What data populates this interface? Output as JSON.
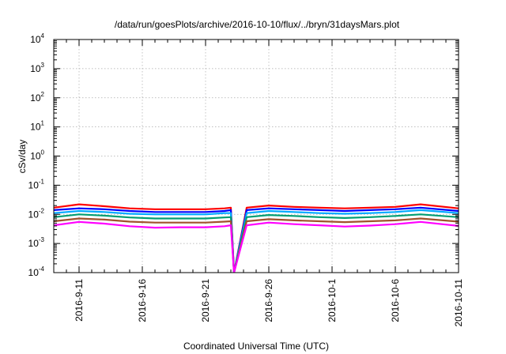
{
  "chart_data": {
    "type": "line",
    "title": "/data/run/goesPlots/archive/2016-10-10/flux/../bryn/31daysMars.plot",
    "xlabel": "Coordinated Universal Time (UTC)",
    "ylabel": "cSv/day",
    "x_range": [
      "2016-09-09T00:00",
      "2016-10-11T00:00"
    ],
    "ylim": [
      0.0001,
      10000
    ],
    "yscale": "log",
    "grid": true,
    "x_ticks": [
      {
        "date": "2016-09-11",
        "label": "2016-9-11"
      },
      {
        "date": "2016-09-16",
        "label": "2016-9-16"
      },
      {
        "date": "2016-09-21",
        "label": "2016-9-21"
      },
      {
        "date": "2016-09-26",
        "label": "2016-9-26"
      },
      {
        "date": "2016-10-01",
        "label": "2016-10-1"
      },
      {
        "date": "2016-10-06",
        "label": "2016-10-6"
      },
      {
        "date": "2016-10-11",
        "label": "2016-10-11"
      }
    ],
    "y_ticks": [
      {
        "value": 0.0001,
        "base": "10",
        "exp": "-4"
      },
      {
        "value": 0.001,
        "base": "10",
        "exp": "-3"
      },
      {
        "value": 0.01,
        "base": "10",
        "exp": "-2"
      },
      {
        "value": 0.1,
        "base": "10",
        "exp": "-1"
      },
      {
        "value": 1,
        "base": "10",
        "exp": "0"
      },
      {
        "value": 10,
        "base": "10",
        "exp": "1"
      },
      {
        "value": 100,
        "base": "10",
        "exp": "2"
      },
      {
        "value": 1000,
        "base": "10",
        "exp": "3"
      },
      {
        "value": 10000,
        "base": "10",
        "exp": "4"
      }
    ],
    "series": [
      {
        "color": "#ff0000",
        "x": [
          "2016-09-09",
          "2016-09-11",
          "2016-09-13",
          "2016-09-15",
          "2016-09-17",
          "2016-09-19",
          "2016-09-21",
          "2016-09-22T12:00",
          "2016-09-23",
          "2016-09-23T06:00",
          "2016-09-24T06:00",
          "2016-09-26",
          "2016-09-28",
          "2016-09-30",
          "2016-10-02",
          "2016-10-04",
          "2016-10-06",
          "2016-10-08",
          "2016-10-11"
        ],
        "y": [
          0.017,
          0.022,
          0.019,
          0.016,
          0.015,
          0.015,
          0.015,
          0.016,
          0.017,
          0.0001,
          0.017,
          0.02,
          0.018,
          0.017,
          0.016,
          0.017,
          0.018,
          0.022,
          0.016
        ]
      },
      {
        "color": "#0000ff",
        "x": [
          "2016-09-09",
          "2016-09-11",
          "2016-09-13",
          "2016-09-15",
          "2016-09-17",
          "2016-09-19",
          "2016-09-21",
          "2016-09-22T12:00",
          "2016-09-23",
          "2016-09-23T06:00",
          "2016-09-24T06:00",
          "2016-09-26",
          "2016-09-28",
          "2016-09-30",
          "2016-10-02",
          "2016-10-04",
          "2016-10-06",
          "2016-10-08",
          "2016-10-11"
        ],
        "y": [
          0.014,
          0.016,
          0.015,
          0.013,
          0.012,
          0.012,
          0.012,
          0.013,
          0.014,
          0.0001,
          0.014,
          0.016,
          0.015,
          0.014,
          0.013,
          0.014,
          0.015,
          0.017,
          0.013
        ]
      },
      {
        "color": "#00aaff",
        "x": [
          "2016-09-09",
          "2016-09-11",
          "2016-09-13",
          "2016-09-15",
          "2016-09-17",
          "2016-09-19",
          "2016-09-21",
          "2016-09-22T12:00",
          "2016-09-23",
          "2016-09-23T06:00",
          "2016-09-24T06:00",
          "2016-09-26",
          "2016-09-28",
          "2016-09-30",
          "2016-10-02",
          "2016-10-04",
          "2016-10-06",
          "2016-10-08",
          "2016-10-11"
        ],
        "y": [
          0.011,
          0.013,
          0.012,
          0.0105,
          0.01,
          0.01,
          0.01,
          0.011,
          0.011,
          0.0001,
          0.011,
          0.013,
          0.012,
          0.011,
          0.0105,
          0.011,
          0.012,
          0.014,
          0.011
        ]
      },
      {
        "color": "#009e73",
        "x": [
          "2016-09-09",
          "2016-09-11",
          "2016-09-13",
          "2016-09-15",
          "2016-09-17",
          "2016-09-19",
          "2016-09-21",
          "2016-09-22T12:00",
          "2016-09-23",
          "2016-09-23T06:00",
          "2016-09-24T06:00",
          "2016-09-26",
          "2016-09-28",
          "2016-09-30",
          "2016-10-02",
          "2016-10-04",
          "2016-10-06",
          "2016-10-08",
          "2016-10-11"
        ],
        "y": [
          0.008,
          0.01,
          0.009,
          0.0078,
          0.0072,
          0.0072,
          0.0072,
          0.0078,
          0.008,
          0.0001,
          0.008,
          0.0095,
          0.0088,
          0.008,
          0.0075,
          0.008,
          0.0088,
          0.01,
          0.008
        ]
      },
      {
        "color": "#a0522d",
        "x": [
          "2016-09-09",
          "2016-09-11",
          "2016-09-13",
          "2016-09-15",
          "2016-09-17",
          "2016-09-19",
          "2016-09-21",
          "2016-09-22T12:00",
          "2016-09-23",
          "2016-09-23T06:00",
          "2016-09-24T06:00",
          "2016-09-26",
          "2016-09-28",
          "2016-09-30",
          "2016-10-02",
          "2016-10-04",
          "2016-10-06",
          "2016-10-08",
          "2016-10-11"
        ],
        "y": [
          0.0058,
          0.0072,
          0.0066,
          0.0056,
          0.0052,
          0.0052,
          0.0052,
          0.0056,
          0.0058,
          0.0001,
          0.0058,
          0.0068,
          0.0062,
          0.0058,
          0.0054,
          0.0058,
          0.0062,
          0.0072,
          0.0056
        ]
      },
      {
        "color": "#ff00ff",
        "x": [
          "2016-09-09",
          "2016-09-11",
          "2016-09-13",
          "2016-09-15",
          "2016-09-17",
          "2016-09-19",
          "2016-09-21",
          "2016-09-22T12:00",
          "2016-09-23",
          "2016-09-23T06:00",
          "2016-09-24T06:00",
          "2016-09-26",
          "2016-09-28",
          "2016-09-30",
          "2016-10-02",
          "2016-10-04",
          "2016-10-06",
          "2016-10-08",
          "2016-10-11"
        ],
        "y": [
          0.0042,
          0.0055,
          0.0048,
          0.0039,
          0.0035,
          0.0036,
          0.0036,
          0.0039,
          0.0042,
          0.0001,
          0.0042,
          0.0052,
          0.0046,
          0.0042,
          0.0038,
          0.0041,
          0.0046,
          0.0055,
          0.004
        ]
      }
    ]
  }
}
